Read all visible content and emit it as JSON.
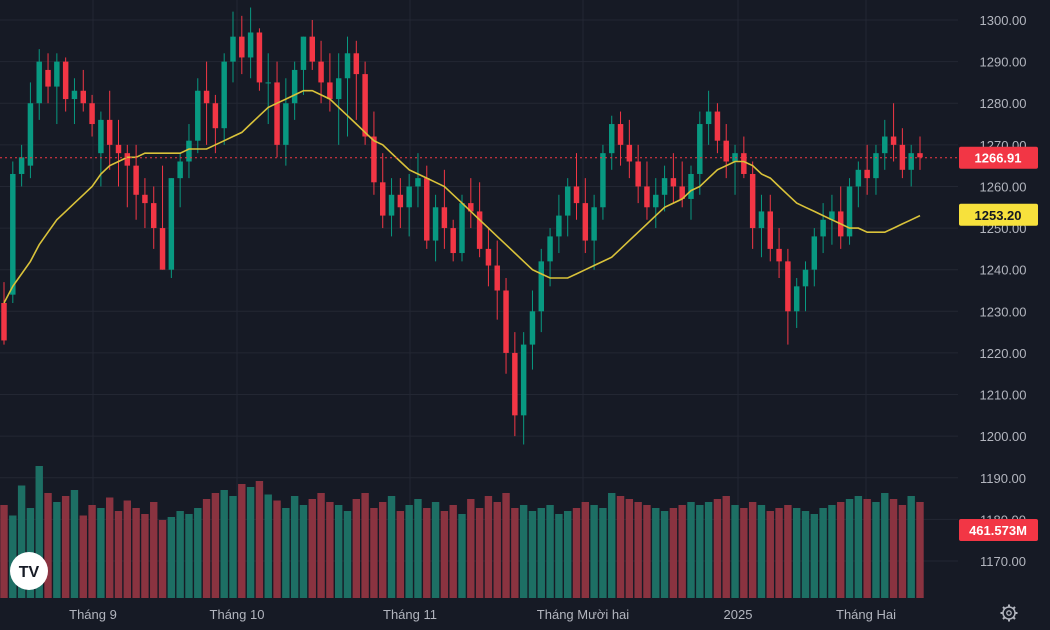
{
  "chart_data": {
    "type": "candlestick",
    "y_range": [
      1162,
      1305
    ],
    "y_ticks": [
      "1300.00",
      "1290.00",
      "1280.00",
      "1270.00",
      "1260.00",
      "1250.00",
      "1240.00",
      "1230.00",
      "1220.00",
      "1210.00",
      "1200.00",
      "1190.00",
      "1180.00",
      "1170.00"
    ],
    "x_labels": [
      "Tháng 9",
      "Tháng 10",
      "Tháng 11",
      "Tháng Mười hai",
      "2025",
      "Tháng Hai"
    ],
    "last_price": {
      "value": 1266.91,
      "label": "1266.91",
      "color": "#f23645"
    },
    "ma_last": {
      "value": 1253.2,
      "label": "1253.20",
      "color": "#f7e13c"
    },
    "volume_last": {
      "label": "461.573M",
      "color": "#f23645"
    },
    "colors": {
      "up": "#089981",
      "down": "#f23645",
      "ma": "#d9c23a",
      "up_volume": "#1d6f64",
      "down_volume": "#8a3340"
    },
    "logo": "TV",
    "settings_icon": "gear-icon",
    "candles": [
      [
        1232,
        1237,
        1222,
        1223
      ],
      [
        1234,
        1266,
        1232,
        1263
      ],
      [
        1263,
        1270,
        1260,
        1267
      ],
      [
        1265,
        1285,
        1262,
        1280
      ],
      [
        1280,
        1293,
        1276,
        1290
      ],
      [
        1288,
        1292,
        1280,
        1284
      ],
      [
        1284,
        1292,
        1275,
        1290
      ],
      [
        1290,
        1291,
        1278,
        1281
      ],
      [
        1281,
        1286,
        1275,
        1283
      ],
      [
        1283,
        1288,
        1278,
        1280
      ],
      [
        1280,
        1282,
        1272,
        1275
      ],
      [
        1268,
        1278,
        1260,
        1276
      ],
      [
        1276,
        1283,
        1264,
        1270
      ],
      [
        1270,
        1276,
        1260,
        1268
      ],
      [
        1268,
        1270,
        1255,
        1265
      ],
      [
        1265,
        1270,
        1252,
        1258
      ],
      [
        1258,
        1262,
        1250,
        1256
      ],
      [
        1256,
        1260,
        1245,
        1250
      ],
      [
        1250,
        1265,
        1240,
        1240
      ],
      [
        1240,
        1262,
        1238,
        1262
      ],
      [
        1262,
        1268,
        1255,
        1266
      ],
      [
        1266,
        1275,
        1262,
        1271
      ],
      [
        1271,
        1286,
        1268,
        1283
      ],
      [
        1283,
        1290,
        1270,
        1280
      ],
      [
        1280,
        1282,
        1268,
        1274
      ],
      [
        1274,
        1292,
        1270,
        1290
      ],
      [
        1290,
        1302,
        1285,
        1296
      ],
      [
        1296,
        1301,
        1287,
        1291
      ],
      [
        1291,
        1303,
        1286,
        1297
      ],
      [
        1297,
        1298,
        1283,
        1285
      ],
      [
        1285,
        1292,
        1275,
        1285
      ],
      [
        1285,
        1290,
        1267,
        1270
      ],
      [
        1270,
        1286,
        1265,
        1280
      ],
      [
        1280,
        1290,
        1276,
        1288
      ],
      [
        1288,
        1296,
        1282,
        1296
      ],
      [
        1296,
        1300,
        1288,
        1290
      ],
      [
        1290,
        1295,
        1280,
        1285
      ],
      [
        1285,
        1292,
        1278,
        1281
      ],
      [
        1281,
        1292,
        1270,
        1286
      ],
      [
        1286,
        1296,
        1272,
        1292
      ],
      [
        1292,
        1295,
        1276,
        1287
      ],
      [
        1287,
        1290,
        1270,
        1272
      ],
      [
        1272,
        1278,
        1258,
        1261
      ],
      [
        1261,
        1268,
        1250,
        1253
      ],
      [
        1253,
        1262,
        1248,
        1258
      ],
      [
        1258,
        1262,
        1250,
        1255
      ],
      [
        1255,
        1263,
        1248,
        1260
      ],
      [
        1260,
        1268,
        1255,
        1262
      ],
      [
        1262,
        1265,
        1245,
        1247
      ],
      [
        1247,
        1258,
        1242,
        1255
      ],
      [
        1255,
        1264,
        1245,
        1250
      ],
      [
        1250,
        1252,
        1242,
        1244
      ],
      [
        1244,
        1258,
        1242,
        1256
      ],
      [
        1256,
        1262,
        1250,
        1254
      ],
      [
        1254,
        1261,
        1243,
        1245
      ],
      [
        1245,
        1250,
        1236,
        1241
      ],
      [
        1241,
        1247,
        1228,
        1235
      ],
      [
        1235,
        1238,
        1215,
        1220
      ],
      [
        1220,
        1225,
        1200,
        1205
      ],
      [
        1205,
        1225,
        1198,
        1222
      ],
      [
        1222,
        1235,
        1216,
        1230
      ],
      [
        1230,
        1245,
        1225,
        1242
      ],
      [
        1242,
        1250,
        1236,
        1248
      ],
      [
        1248,
        1258,
        1244,
        1253
      ],
      [
        1253,
        1262,
        1248,
        1260
      ],
      [
        1260,
        1268,
        1252,
        1256
      ],
      [
        1256,
        1262,
        1244,
        1247
      ],
      [
        1247,
        1258,
        1240,
        1255
      ],
      [
        1255,
        1270,
        1252,
        1268
      ],
      [
        1268,
        1277,
        1264,
        1275
      ],
      [
        1275,
        1278,
        1265,
        1270
      ],
      [
        1270,
        1276,
        1262,
        1266
      ],
      [
        1266,
        1270,
        1256,
        1260
      ],
      [
        1260,
        1266,
        1252,
        1255
      ],
      [
        1255,
        1262,
        1250,
        1258
      ],
      [
        1258,
        1265,
        1254,
        1262
      ],
      [
        1262,
        1268,
        1256,
        1260
      ],
      [
        1260,
        1266,
        1255,
        1257
      ],
      [
        1257,
        1265,
        1252,
        1263
      ],
      [
        1263,
        1278,
        1258,
        1275
      ],
      [
        1275,
        1283,
        1270,
        1278
      ],
      [
        1278,
        1280,
        1268,
        1271
      ],
      [
        1271,
        1275,
        1262,
        1266
      ],
      [
        1266,
        1270,
        1258,
        1268
      ],
      [
        1268,
        1272,
        1262,
        1263
      ],
      [
        1263,
        1266,
        1245,
        1250
      ],
      [
        1250,
        1258,
        1243,
        1254
      ],
      [
        1254,
        1258,
        1242,
        1245
      ],
      [
        1245,
        1250,
        1238,
        1242
      ],
      [
        1242,
        1245,
        1222,
        1230
      ],
      [
        1230,
        1238,
        1226,
        1236
      ],
      [
        1236,
        1242,
        1230,
        1240
      ],
      [
        1240,
        1250,
        1236,
        1248
      ],
      [
        1248,
        1256,
        1244,
        1252
      ],
      [
        1252,
        1258,
        1246,
        1254
      ],
      [
        1254,
        1260,
        1245,
        1248
      ],
      [
        1248,
        1262,
        1246,
        1260
      ],
      [
        1260,
        1266,
        1255,
        1264
      ],
      [
        1264,
        1270,
        1258,
        1262
      ],
      [
        1262,
        1270,
        1258,
        1268
      ],
      [
        1268,
        1276,
        1264,
        1272
      ],
      [
        1272,
        1280,
        1266,
        1270
      ],
      [
        1270,
        1274,
        1262,
        1264
      ],
      [
        1264,
        1270,
        1260,
        1268
      ],
      [
        1268,
        1272,
        1264,
        1267
      ]
    ],
    "ma": [
      1232,
      1236,
      1239,
      1242,
      1246,
      1249,
      1252,
      1254,
      1256,
      1258,
      1260,
      1263,
      1265,
      1266,
      1267,
      1267,
      1268,
      1268,
      1268,
      1268,
      1268,
      1269,
      1269,
      1269,
      1270,
      1271,
      1272,
      1273,
      1275,
      1277,
      1279,
      1280,
      1281,
      1282,
      1283,
      1283,
      1282,
      1281,
      1279,
      1277,
      1275,
      1273,
      1271,
      1270,
      1268,
      1266,
      1264,
      1263,
      1262,
      1261,
      1260,
      1258,
      1256,
      1254,
      1252,
      1250,
      1248,
      1246,
      1244,
      1242,
      1240,
      1239,
      1238,
      1238,
      1238,
      1239,
      1240,
      1241,
      1242,
      1243,
      1245,
      1247,
      1249,
      1251,
      1253,
      1255,
      1256,
      1257,
      1259,
      1260,
      1262,
      1264,
      1265,
      1266,
      1266,
      1265,
      1263,
      1262,
      1260,
      1258,
      1256,
      1255,
      1254,
      1253,
      1252,
      1251,
      1250,
      1250,
      1249,
      1249,
      1249,
      1250,
      1251,
      1252,
      1253
    ],
    "volumes": [
      62,
      55,
      75,
      60,
      88,
      70,
      64,
      68,
      72,
      55,
      62,
      60,
      67,
      58,
      65,
      60,
      56,
      64,
      52,
      54,
      58,
      56,
      60,
      66,
      70,
      72,
      68,
      76,
      74,
      78,
      69,
      65,
      60,
      68,
      62,
      66,
      70,
      64,
      62,
      58,
      66,
      70,
      60,
      64,
      68,
      58,
      62,
      66,
      60,
      64,
      58,
      62,
      56,
      66,
      60,
      68,
      64,
      70,
      60,
      62,
      58,
      60,
      62,
      56,
      58,
      60,
      64,
      62,
      60,
      70,
      68,
      66,
      64,
      62,
      60,
      58,
      60,
      62,
      64,
      62,
      64,
      66,
      68,
      62,
      60,
      64,
      62,
      58,
      60,
      62,
      60,
      58,
      56,
      60,
      62,
      64,
      66,
      68,
      66,
      64,
      70,
      66,
      62,
      68,
      64
    ]
  }
}
